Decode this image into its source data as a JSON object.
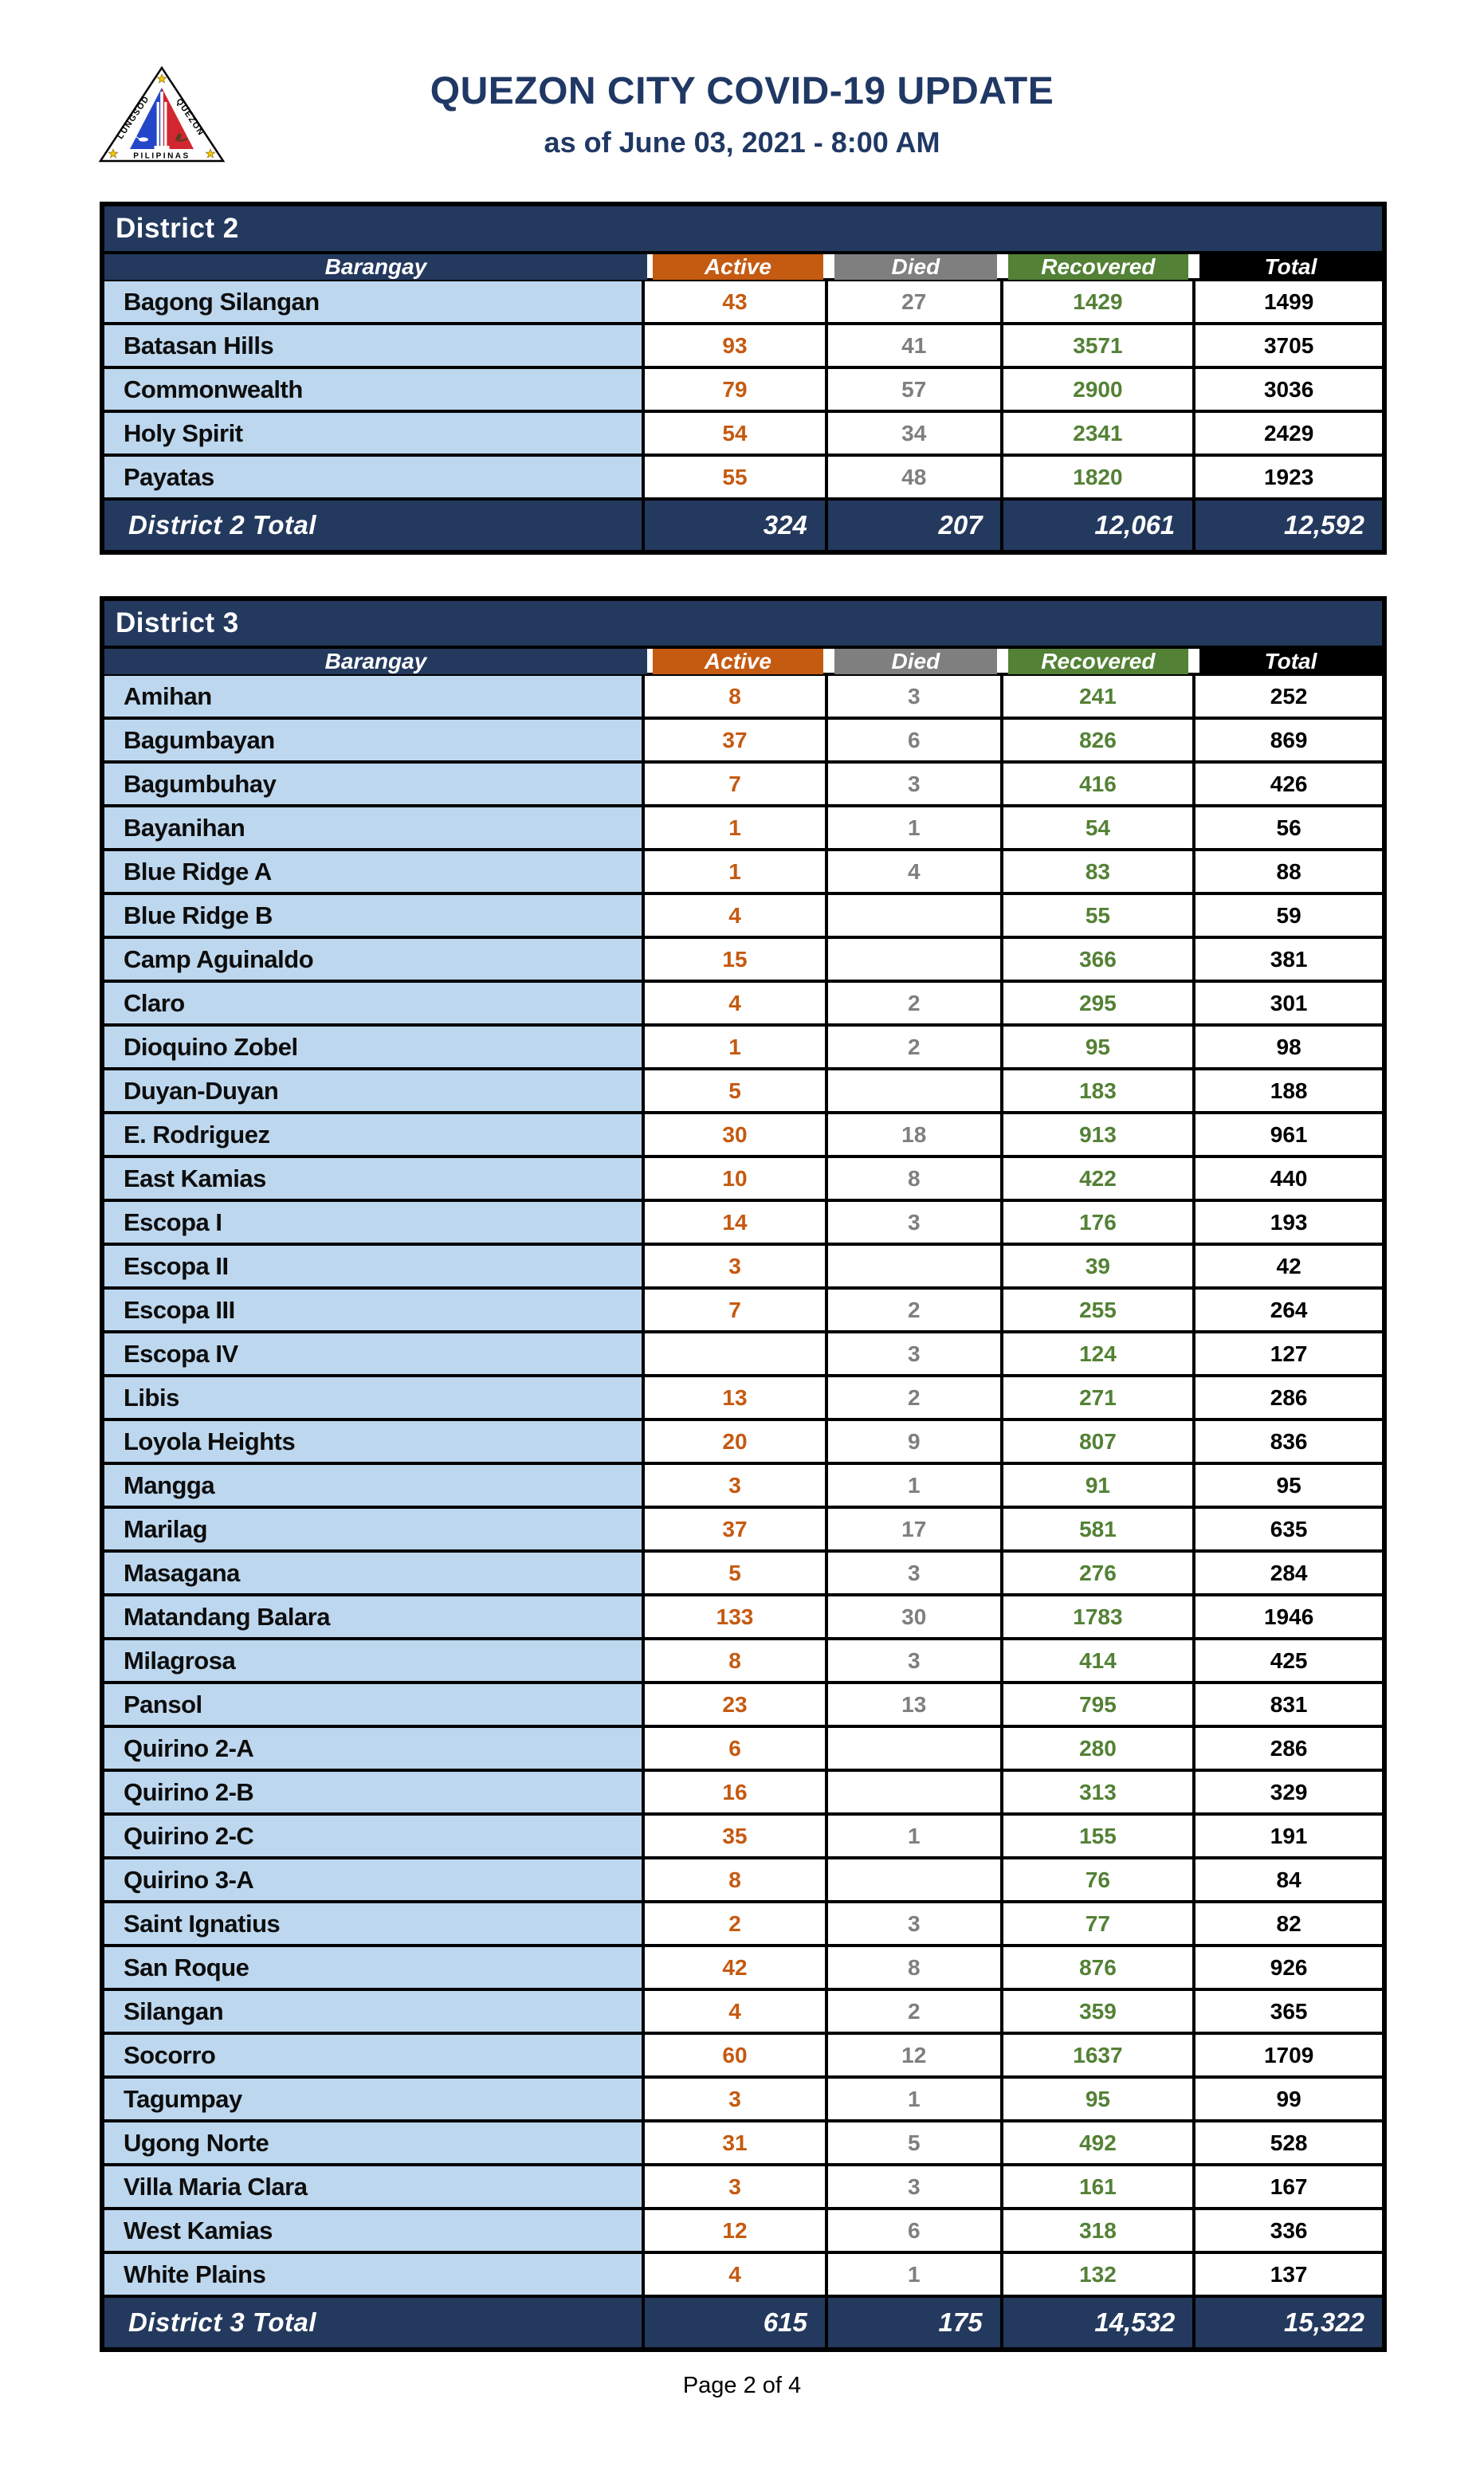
{
  "page": {
    "title": "QUEZON CITY COVID-19 UPDATE",
    "subtitle": "as of June 03, 2021 - 8:00 AM",
    "footer": "Page 2 of 4"
  },
  "logo": {
    "label": "Quezon City seal",
    "text_left": "LUNGSOD",
    "text_right": "QUEZON",
    "text_bottom": "PILIPINAS"
  },
  "colors": {
    "navy": "#24395E",
    "orange": "#C55A11",
    "gray": "#7F7F7F",
    "green": "#538135",
    "black": "#000000",
    "row_blue": "#BDD7EE",
    "title_text": "#203864"
  },
  "columns": [
    "Barangay",
    "Active",
    "Died",
    "Recovered",
    "Total"
  ],
  "districts": [
    {
      "name": "District 2",
      "rows": [
        [
          "Bagong Silangan",
          "43",
          "27",
          "1429",
          "1499"
        ],
        [
          "Batasan Hills",
          "93",
          "41",
          "3571",
          "3705"
        ],
        [
          "Commonwealth",
          "79",
          "57",
          "2900",
          "3036"
        ],
        [
          "Holy Spirit",
          "54",
          "34",
          "2341",
          "2429"
        ],
        [
          "Payatas",
          "55",
          "48",
          "1820",
          "1923"
        ]
      ],
      "total": {
        "label": "District 2 Total",
        "active": "324",
        "died": "207",
        "recovered": "12,061",
        "total": "12,592"
      }
    },
    {
      "name": "District 3",
      "rows": [
        [
          "Amihan",
          "8",
          "3",
          "241",
          "252"
        ],
        [
          "Bagumbayan",
          "37",
          "6",
          "826",
          "869"
        ],
        [
          "Bagumbuhay",
          "7",
          "3",
          "416",
          "426"
        ],
        [
          "Bayanihan",
          "1",
          "1",
          "54",
          "56"
        ],
        [
          "Blue Ridge A",
          "1",
          "4",
          "83",
          "88"
        ],
        [
          "Blue Ridge B",
          "4",
          "",
          "55",
          "59"
        ],
        [
          "Camp Aguinaldo",
          "15",
          "",
          "366",
          "381"
        ],
        [
          "Claro",
          "4",
          "2",
          "295",
          "301"
        ],
        [
          "Dioquino Zobel",
          "1",
          "2",
          "95",
          "98"
        ],
        [
          "Duyan-Duyan",
          "5",
          "",
          "183",
          "188"
        ],
        [
          "E. Rodriguez",
          "30",
          "18",
          "913",
          "961"
        ],
        [
          "East Kamias",
          "10",
          "8",
          "422",
          "440"
        ],
        [
          "Escopa I",
          "14",
          "3",
          "176",
          "193"
        ],
        [
          "Escopa II",
          "3",
          "",
          "39",
          "42"
        ],
        [
          "Escopa III",
          "7",
          "2",
          "255",
          "264"
        ],
        [
          "Escopa IV",
          "",
          "3",
          "124",
          "127"
        ],
        [
          "Libis",
          "13",
          "2",
          "271",
          "286"
        ],
        [
          "Loyola Heights",
          "20",
          "9",
          "807",
          "836"
        ],
        [
          "Mangga",
          "3",
          "1",
          "91",
          "95"
        ],
        [
          "Marilag",
          "37",
          "17",
          "581",
          "635"
        ],
        [
          "Masagana",
          "5",
          "3",
          "276",
          "284"
        ],
        [
          "Matandang Balara",
          "133",
          "30",
          "1783",
          "1946"
        ],
        [
          "Milagrosa",
          "8",
          "3",
          "414",
          "425"
        ],
        [
          "Pansol",
          "23",
          "13",
          "795",
          "831"
        ],
        [
          "Quirino 2-A",
          "6",
          "",
          "280",
          "286"
        ],
        [
          "Quirino 2-B",
          "16",
          "",
          "313",
          "329"
        ],
        [
          "Quirino 2-C",
          "35",
          "1",
          "155",
          "191"
        ],
        [
          "Quirino 3-A",
          "8",
          "",
          "76",
          "84"
        ],
        [
          "Saint Ignatius",
          "2",
          "3",
          "77",
          "82"
        ],
        [
          "San Roque",
          "42",
          "8",
          "876",
          "926"
        ],
        [
          "Silangan",
          "4",
          "2",
          "359",
          "365"
        ],
        [
          "Socorro",
          "60",
          "12",
          "1637",
          "1709"
        ],
        [
          "Tagumpay",
          "3",
          "1",
          "95",
          "99"
        ],
        [
          "Ugong Norte",
          "31",
          "5",
          "492",
          "528"
        ],
        [
          "Villa Maria Clara",
          "3",
          "3",
          "161",
          "167"
        ],
        [
          "West Kamias",
          "12",
          "6",
          "318",
          "336"
        ],
        [
          "White Plains",
          "4",
          "1",
          "132",
          "137"
        ]
      ],
      "total": {
        "label": "District 3 Total",
        "active": "615",
        "died": "175",
        "recovered": "14,532",
        "total": "15,322"
      }
    }
  ]
}
